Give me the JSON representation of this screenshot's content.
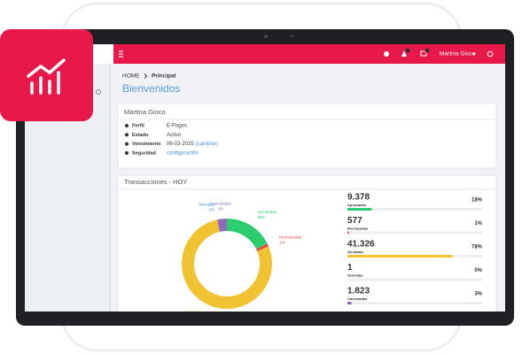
{
  "header": {
    "user": "Martina Gioco"
  },
  "breadcrumb": {
    "home": "HOME",
    "current": "Principal"
  },
  "page_title": "Bienvenidos",
  "profile": {
    "name": "Martina Gioco",
    "rows": [
      {
        "label": "Perfil",
        "value": "E-Pagos"
      },
      {
        "label": "Estado",
        "value": "Activo"
      },
      {
        "label": "Vencimiento",
        "value": "06-03-2025",
        "link": "(cambiar)"
      },
      {
        "label": "Seguridad",
        "link": "configuración"
      }
    ]
  },
  "chart_data": {
    "type": "donut",
    "title": "Transacciones - HOY",
    "categories": [
      "Aprobadas",
      "Rechazadas",
      "Anuladas",
      "Vencidas",
      "Canceladas"
    ],
    "values": [
      9378,
      577,
      41326,
      1,
      1823
    ],
    "value_labels": [
      "9.378",
      "577",
      "41.326",
      "1",
      "1.823"
    ],
    "percents": [
      18,
      1,
      78,
      0,
      3
    ],
    "percent_labels": [
      "18%",
      "1%",
      "78%",
      "0%",
      "3%"
    ],
    "colors": [
      "#2ecc71",
      "#e74c3c",
      "#f1c232",
      "#3498db",
      "#8e6bbf"
    ]
  }
}
